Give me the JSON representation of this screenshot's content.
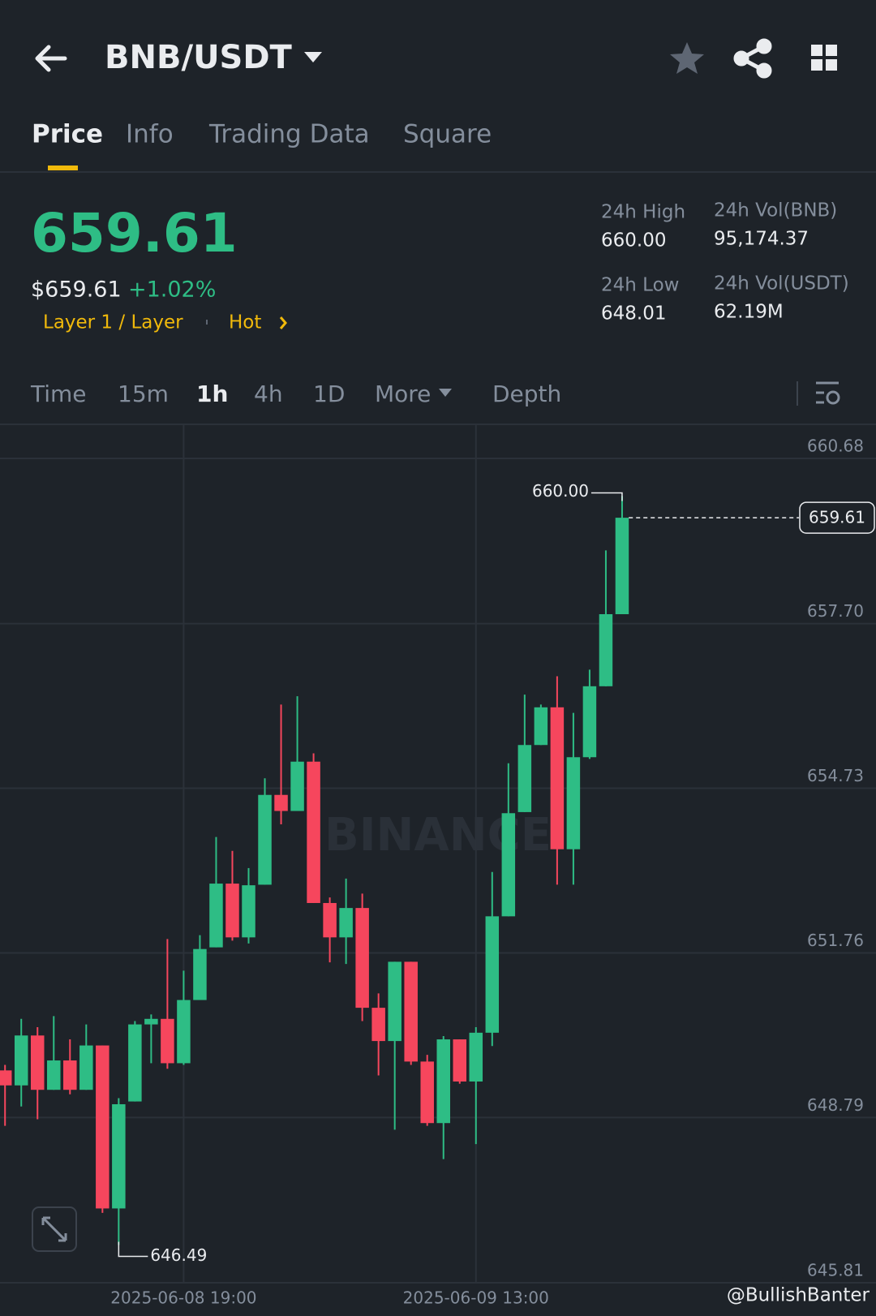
{
  "header": {
    "pair": "BNB/USDT"
  },
  "tabs": [
    "Price",
    "Info",
    "Trading Data",
    "Square"
  ],
  "ticker": {
    "price": "659.61",
    "usd": "$659.61",
    "change": "+1.02%",
    "tags": [
      "Layer 1 / Layer",
      "Hot"
    ]
  },
  "stats": [
    {
      "label": "24h High",
      "value": "660.00"
    },
    {
      "label": "24h Vol(BNB)",
      "value": "95,174.37"
    },
    {
      "label": "24h Low",
      "value": "648.01"
    },
    {
      "label": "24h Vol(USDT)",
      "value": "62.19M"
    }
  ],
  "intervals": [
    "Time",
    "15m",
    "1h",
    "4h",
    "1D",
    "More",
    "Depth"
  ],
  "watermark": "BINANCE",
  "credit": "@BullishBanter",
  "chart_data": {
    "type": "candlestick",
    "up_color": "#2ebd85",
    "down_color": "#f6465d",
    "ylim": [
      645.81,
      660.68
    ],
    "yticks": [
      645.81,
      648.79,
      651.76,
      654.73,
      {
        "value": 657.7,
        "label": "657.70"
      },
      660.68
    ],
    "categories": [
      null,
      null,
      null,
      null,
      null,
      null,
      null,
      null,
      null,
      null,
      null,
      "2025-06-08 19:00",
      null,
      null,
      null,
      null,
      null,
      null,
      null,
      null,
      null,
      null,
      null,
      null,
      null,
      null,
      null,
      null,
      null,
      "2025-06-09 13:00",
      null,
      null,
      null,
      null,
      null,
      null,
      null,
      null,
      null
    ],
    "open": [
      649.64,
      649.37,
      650.27,
      649.29,
      649.82,
      649.29,
      650.09,
      647.15,
      649.08,
      650.47,
      650.57,
      649.77,
      650.91,
      651.86,
      653.01,
      652.04,
      652.99,
      654.61,
      654.32,
      655.21,
      652.66,
      652.04,
      652.57,
      650.77,
      650.17,
      651.6,
      649.8,
      648.69,
      650.2,
      649.44,
      650.32,
      652.42,
      654.3,
      655.51,
      656.19,
      653.63,
      655.29,
      656.57,
      657.87
    ],
    "high": [
      649.74,
      650.57,
      650.42,
      650.62,
      650.2,
      650.47,
      650.09,
      649.14,
      650.53,
      650.65,
      652.01,
      651.44,
      652.08,
      653.85,
      653.6,
      653.29,
      654.91,
      656.24,
      656.39,
      655.36,
      652.76,
      653.1,
      652.83,
      651.03,
      651.6,
      651.6,
      649.92,
      650.26,
      650.2,
      650.42,
      653.22,
      655.18,
      656.42,
      656.24,
      656.75,
      656.09,
      656.87,
      659.02,
      660.0
    ],
    "low": [
      648.64,
      648.99,
      648.76,
      649.29,
      649.21,
      649.29,
      647.07,
      646.49,
      649.08,
      649.77,
      649.67,
      649.74,
      650.91,
      651.86,
      651.98,
      651.93,
      652.99,
      654.08,
      654.32,
      652.66,
      651.59,
      651.56,
      650.53,
      649.55,
      648.57,
      649.74,
      648.64,
      648.04,
      649.4,
      648.31,
      650.08,
      652.42,
      654.3,
      655.51,
      652.99,
      652.99,
      655.26,
      656.57,
      657.87
    ],
    "close": [
      649.37,
      650.27,
      649.29,
      649.82,
      649.29,
      650.09,
      647.15,
      649.03,
      650.47,
      650.57,
      649.77,
      650.91,
      651.83,
      653.01,
      652.04,
      652.98,
      654.61,
      654.32,
      655.21,
      652.66,
      652.04,
      652.57,
      650.77,
      650.17,
      651.6,
      649.8,
      648.69,
      650.2,
      649.44,
      650.32,
      652.42,
      654.28,
      655.51,
      656.19,
      653.63,
      655.29,
      656.57,
      657.87,
      659.61
    ],
    "high_marker": {
      "value": 660.0,
      "label": "660.00"
    },
    "low_marker": {
      "value": 646.49,
      "label": "646.49"
    },
    "last_price": {
      "value": 659.61,
      "label": "659.61"
    },
    "grid": true
  }
}
